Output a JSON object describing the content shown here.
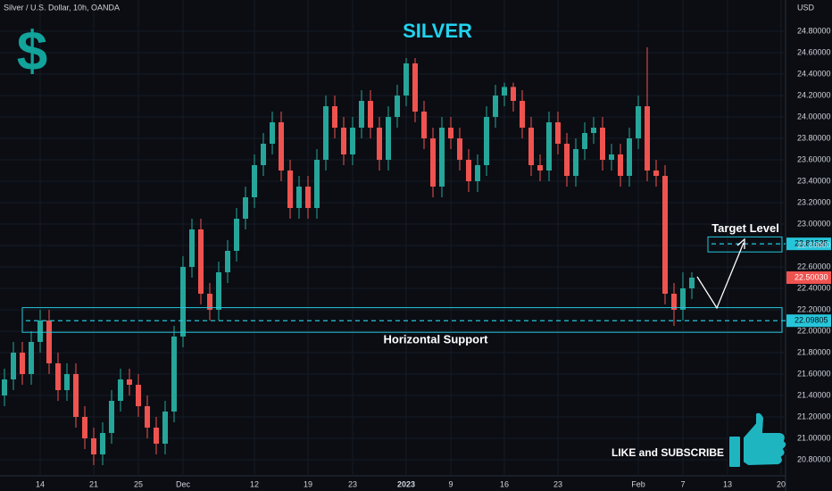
{
  "chart_data": {
    "type": "candlestick",
    "header": "Silver / U.S. Dollar, 10h, OANDA",
    "title": "SILVER",
    "currency": "USD",
    "logo": "$",
    "call_to_action": "LIKE and SUBSCRIBE",
    "up_color": "#26a69a",
    "down_color": "#ef5350",
    "grid": true,
    "categories": [
      null,
      null,
      null,
      null,
      "14",
      null,
      null,
      null,
      null,
      null,
      "21",
      null,
      null,
      null,
      null,
      "25",
      null,
      null,
      null,
      null,
      "Dec",
      null,
      null,
      null,
      null,
      null,
      null,
      null,
      "12",
      null,
      null,
      null,
      null,
      null,
      "19",
      null,
      null,
      null,
      null,
      "23",
      null,
      null,
      null,
      null,
      null,
      "2023",
      null,
      null,
      null,
      null,
      "9",
      null,
      null,
      null,
      null,
      null,
      "16",
      null,
      null,
      null,
      null,
      null,
      "23",
      null,
      null,
      null,
      null,
      null,
      null,
      null,
      null,
      "Feb",
      null,
      null,
      null,
      null,
      "7",
      null,
      null,
      null,
      null,
      "13",
      null,
      null,
      null,
      null,
      null,
      "20"
    ],
    "open": [
      21.4,
      21.55,
      21.8,
      21.6,
      21.9,
      22.1,
      21.7,
      21.45,
      21.6,
      21.2,
      21.0,
      20.85,
      21.05,
      21.35,
      21.55,
      21.5,
      21.3,
      21.1,
      20.95,
      21.25,
      21.95,
      22.6,
      22.95,
      22.35,
      22.2,
      22.55,
      22.75,
      23.05,
      23.25,
      23.55,
      23.75,
      23.95,
      23.5,
      23.15,
      23.35,
      23.15,
      23.6,
      24.1,
      23.9,
      23.65,
      23.9,
      24.15,
      23.9,
      23.6,
      24.0,
      24.2,
      24.5,
      24.05,
      23.8,
      23.35,
      23.9,
      23.8,
      23.6,
      23.4,
      23.55,
      24.0,
      24.2,
      24.28,
      24.15,
      23.9,
      23.55,
      23.5,
      23.95,
      23.75,
      23.45,
      23.7,
      23.85,
      23.9,
      23.6,
      23.65,
      23.45,
      23.8,
      24.1,
      23.5,
      23.45,
      22.35,
      22.2,
      22.4,
      null,
      null,
      null,
      null,
      null,
      null,
      null,
      null,
      null,
      null
    ],
    "high": [
      21.65,
      21.9,
      21.9,
      22.0,
      22.2,
      22.2,
      21.8,
      21.7,
      21.7,
      21.3,
      21.1,
      21.15,
      21.45,
      21.65,
      21.65,
      21.6,
      21.4,
      21.2,
      21.35,
      22.05,
      22.7,
      23.05,
      23.05,
      22.45,
      22.65,
      22.85,
      23.15,
      23.35,
      23.65,
      23.85,
      24.05,
      24.05,
      23.6,
      23.45,
      23.45,
      23.7,
      24.2,
      24.2,
      24.0,
      24.0,
      24.25,
      24.25,
      24.0,
      24.1,
      24.3,
      24.55,
      24.55,
      24.15,
      23.9,
      24.0,
      24.0,
      23.9,
      23.7,
      23.65,
      24.1,
      24.3,
      24.32,
      24.32,
      24.25,
      24.0,
      23.65,
      24.05,
      24.05,
      23.85,
      23.8,
      23.95,
      24.0,
      24.0,
      23.75,
      23.75,
      23.9,
      24.2,
      24.65,
      23.6,
      23.55,
      22.45,
      22.55,
      22.55,
      null,
      null,
      null,
      null,
      null,
      null,
      null,
      null,
      null,
      null
    ],
    "low": [
      21.3,
      21.45,
      21.5,
      21.5,
      21.8,
      21.6,
      21.35,
      21.35,
      21.1,
      20.9,
      20.75,
      20.75,
      20.95,
      21.25,
      21.4,
      21.2,
      21.0,
      20.85,
      20.85,
      21.15,
      21.85,
      22.5,
      22.25,
      22.1,
      22.1,
      22.45,
      22.65,
      22.95,
      23.15,
      23.45,
      23.65,
      23.4,
      23.05,
      23.05,
      23.05,
      23.05,
      23.5,
      23.8,
      23.55,
      23.55,
      23.8,
      23.8,
      23.5,
      23.5,
      23.9,
      24.1,
      23.95,
      23.7,
      23.25,
      23.25,
      23.7,
      23.5,
      23.3,
      23.3,
      23.45,
      23.9,
      24.1,
      24.05,
      23.8,
      23.45,
      23.4,
      23.4,
      23.65,
      23.35,
      23.35,
      23.6,
      23.75,
      23.5,
      23.5,
      23.35,
      23.35,
      23.7,
      23.4,
      23.35,
      22.25,
      22.05,
      22.1,
      22.3,
      null,
      null,
      null,
      null,
      null,
      null,
      null,
      null,
      null,
      null
    ],
    "close": [
      21.55,
      21.8,
      21.6,
      21.9,
      22.1,
      21.7,
      21.45,
      21.6,
      21.2,
      21.0,
      20.85,
      21.05,
      21.35,
      21.55,
      21.5,
      21.3,
      21.1,
      20.95,
      21.25,
      21.95,
      22.6,
      22.95,
      22.35,
      22.2,
      22.55,
      22.75,
      23.05,
      23.25,
      23.55,
      23.75,
      23.95,
      23.5,
      23.15,
      23.35,
      23.15,
      23.6,
      24.1,
      23.9,
      23.65,
      23.9,
      24.15,
      23.9,
      23.6,
      24.0,
      24.2,
      24.5,
      24.05,
      23.8,
      23.35,
      23.9,
      23.8,
      23.6,
      23.4,
      23.55,
      24.0,
      24.2,
      24.28,
      24.15,
      23.9,
      23.55,
      23.5,
      23.95,
      23.75,
      23.45,
      23.7,
      23.85,
      23.9,
      23.6,
      23.65,
      23.45,
      23.8,
      24.1,
      23.5,
      23.45,
      22.35,
      22.2,
      22.4,
      22.5003,
      null,
      null,
      null,
      null,
      null,
      null,
      null,
      null,
      null,
      null
    ],
    "last_price": {
      "value": 22.5003,
      "label": "22.50030"
    },
    "levels": [
      {
        "name": "Target Level",
        "value": 22.81535,
        "value_label": "22.81535",
        "band": [
          22.74,
          22.88
        ],
        "color": "#26c6da"
      },
      {
        "name": "Horizontal Support",
        "value": 22.09805,
        "value_label": "22.09805",
        "band": [
          21.99,
          22.22
        ],
        "color": "#26c6da"
      }
    ],
    "ylim": [
      20.65,
      25.0
    ],
    "yticks": [
      {
        "value": 20.8,
        "label": "20.80000"
      },
      {
        "value": 21.0,
        "label": "21.00000"
      },
      {
        "value": 21.2,
        "label": "21.20000"
      },
      {
        "value": 21.4,
        "label": "21.40000"
      },
      {
        "value": 21.6,
        "label": "21.60000"
      },
      {
        "value": 21.8,
        "label": "21.80000"
      },
      {
        "value": 22.0,
        "label": "22.00000"
      },
      {
        "value": 22.2,
        "label": "22.20000"
      },
      {
        "value": 22.4,
        "label": "22.40000"
      },
      {
        "value": 22.6,
        "label": "22.60000"
      },
      {
        "value": 22.8,
        "label": "22.80000"
      },
      {
        "value": 23.0,
        "label": "23.00000"
      },
      {
        "value": 23.2,
        "label": "23.20000"
      },
      {
        "value": 23.4,
        "label": "23.40000"
      },
      {
        "value": 23.6,
        "label": "23.60000"
      },
      {
        "value": 23.8,
        "label": "23.80000"
      },
      {
        "value": 24.0,
        "label": "24.00000"
      },
      {
        "value": 24.2,
        "label": "24.20000"
      },
      {
        "value": 24.4,
        "label": "24.40000"
      },
      {
        "value": 24.6,
        "label": "24.60000"
      },
      {
        "value": 24.8,
        "label": "24.80000"
      }
    ]
  }
}
